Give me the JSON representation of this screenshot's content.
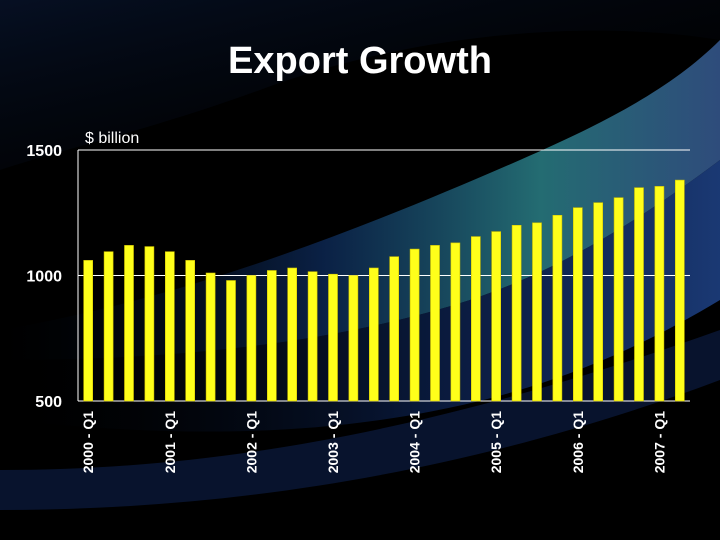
{
  "slide": {
    "title": "Export Growth"
  },
  "colors": {
    "background": "#000000",
    "bar": "#ffff1a",
    "bar_edge": "#d6c800",
    "grid": "#ffffff",
    "text": "#ffffff"
  },
  "chart_data": {
    "type": "bar",
    "title": "Export Growth",
    "ylabel": "$ billion",
    "xlabel": "",
    "ylim": [
      500,
      1500
    ],
    "yticks": [
      500,
      1000,
      1500
    ],
    "grid": true,
    "xtick_labels": [
      "2000 - Q1",
      "2001 - Q1",
      "2002 - Q1",
      "2003 - Q1",
      "2004 - Q1",
      "2005 - Q1",
      "2006 - Q1",
      "2007 - Q1"
    ],
    "xtick_every": 4,
    "values": [
      1060,
      1095,
      1120,
      1115,
      1095,
      1060,
      1010,
      980,
      1000,
      1020,
      1030,
      1015,
      1005,
      1000,
      1030,
      1075,
      1105,
      1120,
      1130,
      1155,
      1175,
      1200,
      1210,
      1240,
      1270,
      1290,
      1310,
      1350,
      1355,
      1380
    ]
  }
}
